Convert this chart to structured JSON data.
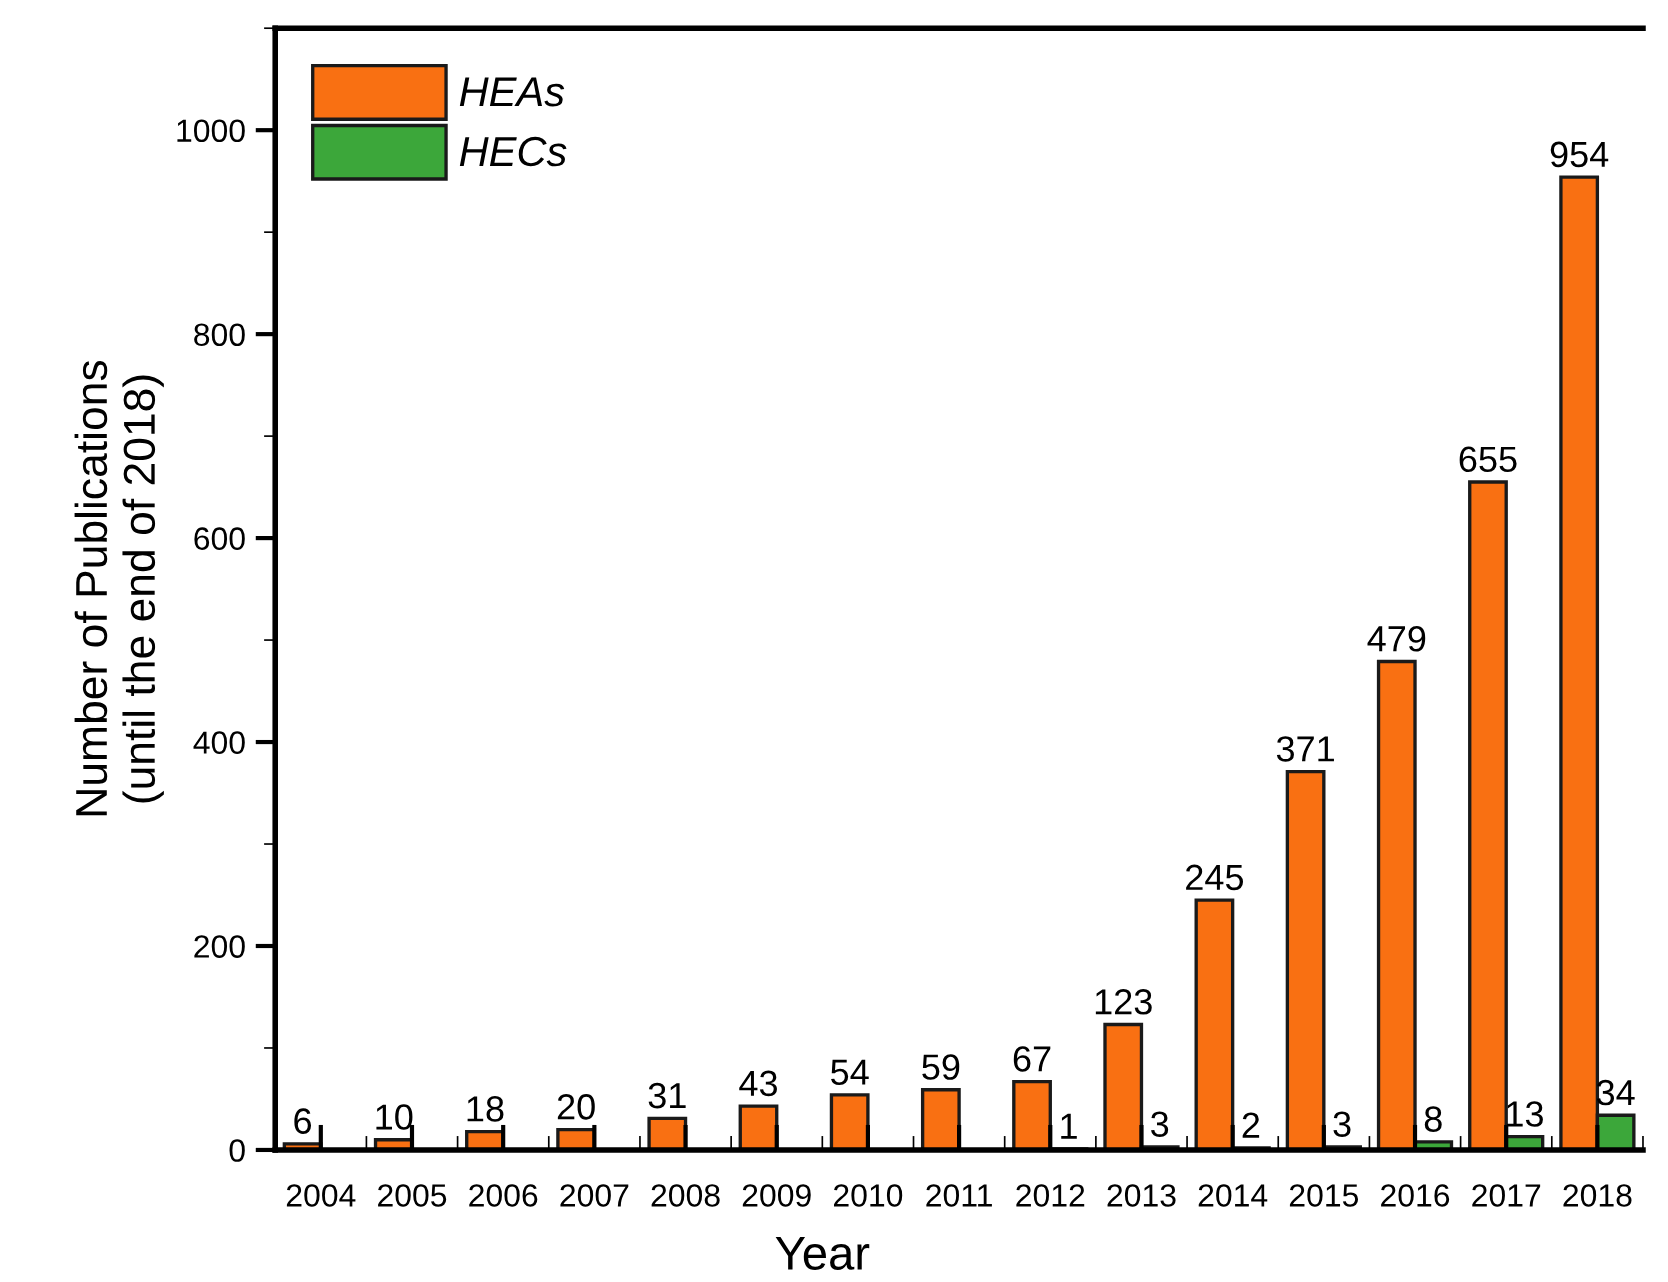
{
  "chart_data": {
    "type": "bar",
    "xlabel": "Year",
    "ylabel": "Number of Publications\n(until the end of 2018)",
    "categories": [
      "2004",
      "2005",
      "2006",
      "2007",
      "2008",
      "2009",
      "2010",
      "2011",
      "2012",
      "2013",
      "2014",
      "2015",
      "2016",
      "2017",
      "2018"
    ],
    "series": [
      {
        "name": "HEAs",
        "color": "#f97012",
        "values": [
          6,
          10,
          18,
          20,
          31,
          43,
          54,
          59,
          67,
          123,
          245,
          371,
          479,
          655,
          954
        ]
      },
      {
        "name": "HECs",
        "color": "#3ca73a",
        "values": [
          null,
          null,
          null,
          null,
          null,
          null,
          null,
          null,
          1,
          3,
          2,
          3,
          8,
          13,
          34
        ]
      }
    ],
    "ylim": [
      0,
      1100
    ],
    "yticks": [
      0,
      200,
      400,
      600,
      800,
      1000
    ],
    "data_labels": true,
    "grid": false,
    "legend": "top left"
  }
}
